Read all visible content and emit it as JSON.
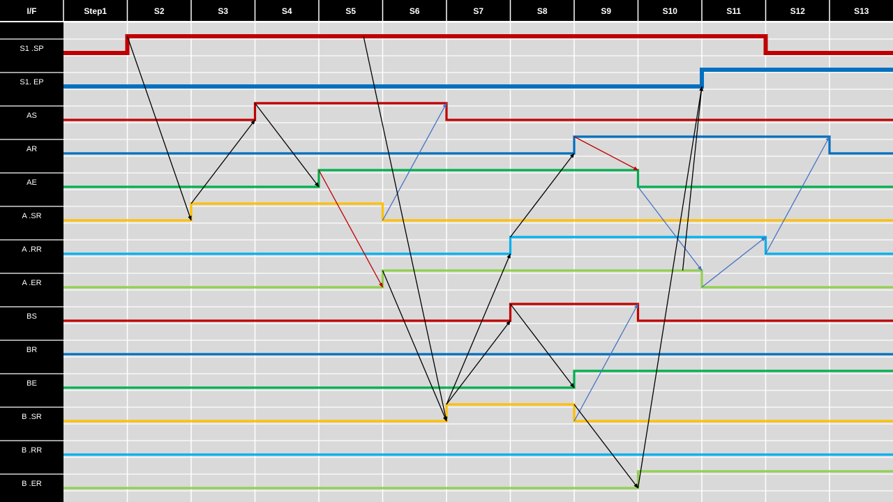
{
  "corner_label": "I/F",
  "steps": [
    "Step1",
    "S2",
    "S3",
    "S4",
    "S5",
    "S6",
    "S7",
    "S8",
    "S9",
    "S10",
    "S11",
    "S12",
    "S13"
  ],
  "rows": [
    {
      "label": "S1 .SP",
      "color": "#c00000",
      "thick": true
    },
    {
      "label": "S1. EP",
      "color": "#0070c0",
      "thick": true
    },
    {
      "label": "AS",
      "color": "#c00000",
      "thick": false
    },
    {
      "label": "AR",
      "color": "#0070c0",
      "thick": false
    },
    {
      "label": "AE",
      "color": "#00b050",
      "thick": false
    },
    {
      "label": "A .SR",
      "color": "#ffc000",
      "thick": false
    },
    {
      "label": "A .RR",
      "color": "#00b0f0",
      "thick": false
    },
    {
      "label": "A .ER",
      "color": "#92d050",
      "thick": false
    },
    {
      "label": "BS",
      "color": "#c00000",
      "thick": false
    },
    {
      "label": "BR",
      "color": "#0070c0",
      "thick": false
    },
    {
      "label": "BE",
      "color": "#00b050",
      "thick": false
    },
    {
      "label": "B .SR",
      "color": "#ffc000",
      "thick": false
    },
    {
      "label": "B .RR",
      "color": "#00b0f0",
      "thick": false
    },
    {
      "label": "B .ER",
      "color": "#92d050",
      "thick": false
    }
  ],
  "chart_data": {
    "type": "timing-diagram",
    "signals": [
      {
        "name": "S1 .SP",
        "transitions": [
          {
            "step": 1,
            "level": 1
          },
          {
            "step": 11,
            "level": 0
          }
        ]
      },
      {
        "name": "S1. EP",
        "transitions": [
          {
            "step": 10,
            "level": 1
          }
        ]
      },
      {
        "name": "AS",
        "transitions": [
          {
            "step": 3,
            "level": 1
          },
          {
            "step": 6,
            "level": 0
          }
        ]
      },
      {
        "name": "AR",
        "transitions": [
          {
            "step": 8,
            "level": 1
          },
          {
            "step": 12,
            "level": 0
          }
        ]
      },
      {
        "name": "AE",
        "transitions": [
          {
            "step": 4,
            "level": 1
          },
          {
            "step": 9,
            "level": 0
          }
        ]
      },
      {
        "name": "A .SR",
        "transitions": [
          {
            "step": 2,
            "level": 1
          },
          {
            "step": 5,
            "level": 0
          }
        ]
      },
      {
        "name": "A .RR",
        "transitions": [
          {
            "step": 7,
            "level": 1
          },
          {
            "step": 11,
            "level": 0
          }
        ]
      },
      {
        "name": "A .ER",
        "transitions": [
          {
            "step": 5,
            "level": 1
          },
          {
            "step": 10,
            "level": 0
          }
        ]
      },
      {
        "name": "BS",
        "transitions": [
          {
            "step": 7,
            "level": 1
          },
          {
            "step": 9,
            "level": 0
          }
        ]
      },
      {
        "name": "BR",
        "transitions": []
      },
      {
        "name": "BE",
        "transitions": [
          {
            "step": 8,
            "level": 1
          }
        ]
      },
      {
        "name": "B .SR",
        "transitions": [
          {
            "step": 6,
            "level": 1
          },
          {
            "step": 8,
            "level": 0
          }
        ]
      },
      {
        "name": "B .RR",
        "transitions": []
      },
      {
        "name": "B .ER",
        "transitions": [
          {
            "step": 9,
            "level": 1
          }
        ]
      }
    ],
    "arrows": [
      {
        "from": [
          1,
          0,
          "high"
        ],
        "to": [
          2,
          5,
          "low"
        ],
        "color": "#000000"
      },
      {
        "from": [
          2,
          5,
          "high"
        ],
        "to": [
          3,
          2,
          "low"
        ],
        "color": "#000000"
      },
      {
        "from": [
          3,
          2,
          "high"
        ],
        "to": [
          4,
          4,
          "low"
        ],
        "color": "#000000"
      },
      {
        "from": [
          4,
          4,
          "high"
        ],
        "to": [
          5,
          7,
          "low"
        ],
        "color": "#c00000"
      },
      {
        "from": [
          5,
          5,
          "low"
        ],
        "to": [
          6,
          2,
          "high"
        ],
        "color": "#4472c4"
      },
      {
        "from": [
          4.7,
          0,
          "high"
        ],
        "to": [
          6,
          11,
          "low"
        ],
        "color": "#000000"
      },
      {
        "from": [
          5,
          7,
          "high"
        ],
        "to": [
          6,
          11,
          "low"
        ],
        "color": "#000000"
      },
      {
        "from": [
          6,
          11,
          "high"
        ],
        "to": [
          7,
          6,
          "low"
        ],
        "color": "#000000"
      },
      {
        "from": [
          6,
          11,
          "high"
        ],
        "to": [
          7,
          8,
          "low"
        ],
        "color": "#000000"
      },
      {
        "from": [
          7,
          6,
          "high"
        ],
        "to": [
          8,
          3,
          "low"
        ],
        "color": "#000000"
      },
      {
        "from": [
          7,
          8,
          "high"
        ],
        "to": [
          8,
          10,
          "low"
        ],
        "color": "#000000"
      },
      {
        "from": [
          8,
          3,
          "high"
        ],
        "to": [
          9,
          4,
          "high"
        ],
        "color": "#c00000"
      },
      {
        "from": [
          8,
          11,
          "low"
        ],
        "to": [
          9,
          8,
          "high"
        ],
        "color": "#4472c4"
      },
      {
        "from": [
          8,
          11,
          "high"
        ],
        "to": [
          9,
          13,
          "low"
        ],
        "color": "#000000"
      },
      {
        "from": [
          9,
          4,
          "low"
        ],
        "to": [
          10,
          7,
          "high"
        ],
        "color": "#4472c4"
      },
      {
        "from": [
          9,
          13,
          "low"
        ],
        "to": [
          10,
          1,
          "low"
        ],
        "color": "#000000"
      },
      {
        "from": [
          9.7,
          7,
          "high"
        ],
        "to": [
          10,
          1,
          "low"
        ],
        "color": "#000000"
      },
      {
        "from": [
          10,
          7,
          "low"
        ],
        "to": [
          11,
          6,
          "high"
        ],
        "color": "#4472c4"
      },
      {
        "from": [
          11,
          6,
          "low"
        ],
        "to": [
          12,
          3,
          "high"
        ],
        "color": "#4472c4"
      }
    ]
  }
}
